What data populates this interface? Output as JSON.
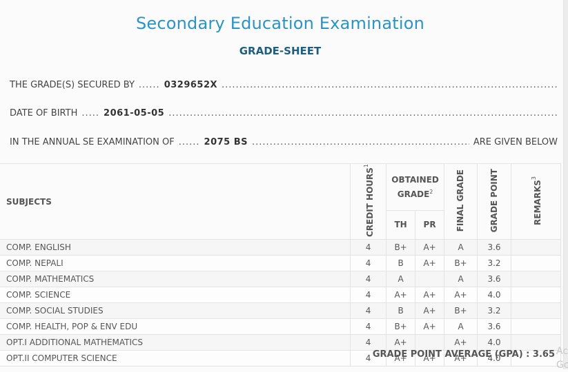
{
  "header": {
    "title": "Secondary Education Examination",
    "subtitle": "GRADE-SHEET"
  },
  "info": {
    "secured_by_label": "THE GRADE(S) SECURED BY",
    "symbol_no": "0329652X",
    "dob_label": "DATE OF BIRTH",
    "dob": "2061-05-05",
    "exam_label": "IN THE ANNUAL SE EXAMINATION OF",
    "exam_year": "2075 BS",
    "exam_tail": "ARE GIVEN BELOW"
  },
  "table": {
    "headers": {
      "subjects": "SUBJECTS",
      "credit_hours": "CREDIT HOURS",
      "credit_sup": "1",
      "obtained_grade": "OBTAINED GRADE",
      "obtained_sup": "2",
      "th": "TH",
      "pr": "PR",
      "final_grade": "FINAL GRADE",
      "grade_point": "GRADE POINT",
      "remarks": "REMARKS",
      "remarks_sup": "3"
    },
    "rows": [
      {
        "subject": "COMP. ENGLISH",
        "credit": "4",
        "th": "B+",
        "pr": "A+",
        "final": "A",
        "gp": "3.6",
        "remarks": ""
      },
      {
        "subject": "COMP. NEPALI",
        "credit": "4",
        "th": "B",
        "pr": "A+",
        "final": "B+",
        "gp": "3.2",
        "remarks": ""
      },
      {
        "subject": "COMP. MATHEMATICS",
        "credit": "4",
        "th": "A",
        "pr": "",
        "final": "A",
        "gp": "3.6",
        "remarks": ""
      },
      {
        "subject": "COMP. SCIENCE",
        "credit": "4",
        "th": "A+",
        "pr": "A+",
        "final": "A+",
        "gp": "4.0",
        "remarks": ""
      },
      {
        "subject": "COMP. SOCIAL STUDIES",
        "credit": "4",
        "th": "B",
        "pr": "A+",
        "final": "B+",
        "gp": "3.2",
        "remarks": ""
      },
      {
        "subject": "COMP. HEALTH, POP & ENV EDU",
        "credit": "4",
        "th": "B+",
        "pr": "A+",
        "final": "A",
        "gp": "3.6",
        "remarks": ""
      },
      {
        "subject": "OPT.I ADDITIONAL MATHEMATICS",
        "credit": "4",
        "th": "A+",
        "pr": "",
        "final": "A+",
        "gp": "4.0",
        "remarks": ""
      },
      {
        "subject": "OPT.II COMPUTER SCIENCE",
        "credit": "4",
        "th": "A+",
        "pr": "A+",
        "final": "A+",
        "gp": "4.0",
        "remarks": ""
      }
    ]
  },
  "gpa": {
    "label": "GRADE POINT AVERAGE (GPA) :",
    "value": "3.65"
  },
  "watermark": {
    "line1": "Ac",
    "line2": "Go"
  }
}
